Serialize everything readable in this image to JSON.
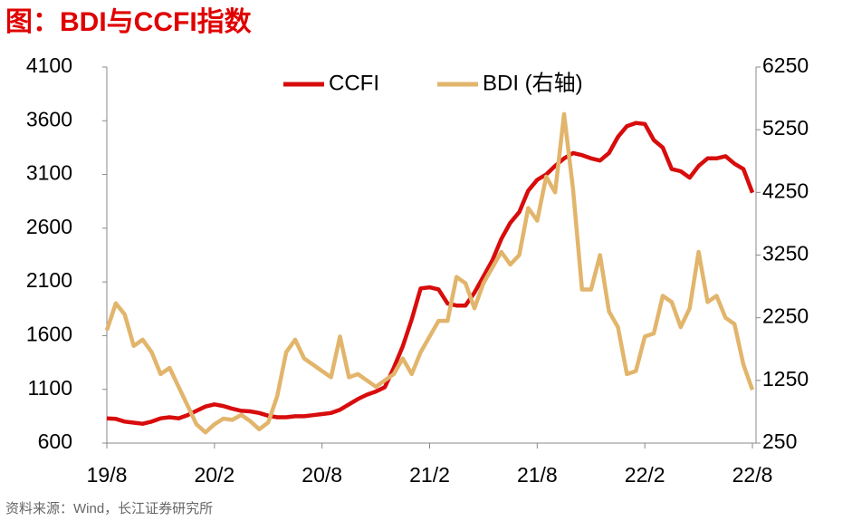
{
  "chart_data": {
    "type": "line",
    "title": "图：BDI与CCFI指数",
    "source": "资料来源：Wind，长江证券研究所",
    "categories": [
      "19/8",
      null,
      null,
      null,
      null,
      null,
      null,
      null,
      null,
      null,
      null,
      null,
      "20/2",
      null,
      null,
      null,
      null,
      null,
      null,
      null,
      null,
      null,
      null,
      null,
      "20/8",
      null,
      null,
      null,
      null,
      null,
      null,
      null,
      null,
      null,
      null,
      null,
      "21/2",
      null,
      null,
      null,
      null,
      null,
      null,
      null,
      null,
      null,
      null,
      null,
      "21/8",
      null,
      null,
      null,
      null,
      null,
      null,
      null,
      null,
      null,
      null,
      null,
      "22/2",
      null,
      null,
      null,
      null,
      null,
      null,
      null,
      null,
      null,
      null,
      null,
      "22/8"
    ],
    "series": [
      {
        "name": "CCFI",
        "color": "#d80c0c",
        "values": [
          830,
          825,
          800,
          790,
          780,
          800,
          830,
          840,
          830,
          860,
          900,
          940,
          960,
          945,
          920,
          900,
          895,
          880,
          855,
          840,
          840,
          850,
          850,
          860,
          870,
          880,
          910,
          960,
          1010,
          1050,
          1080,
          1120,
          1300,
          1500,
          1750,
          2040,
          2050,
          2030,
          1900,
          1880,
          1880,
          2000,
          2150,
          2300,
          2500,
          2650,
          2750,
          2950,
          3050,
          3100,
          3180,
          3250,
          3300,
          3280,
          3250,
          3230,
          3300,
          3450,
          3550,
          3580,
          3570,
          3420,
          3350,
          3150,
          3130,
          3070,
          3180,
          3250,
          3250,
          3270,
          3200,
          3150,
          2930
        ]
      },
      {
        "name": "BDI (右轴)",
        "color": "#e2b56c",
        "axis": "y2",
        "values": [
          2050,
          2480,
          2300,
          1800,
          1900,
          1700,
          1350,
          1450,
          1150,
          850,
          550,
          420,
          550,
          640,
          620,
          700,
          600,
          470,
          580,
          1000,
          1700,
          1900,
          1600,
          1500,
          1400,
          1300,
          1950,
          1300,
          1350,
          1250,
          1150,
          1250,
          1350,
          1600,
          1350,
          1700,
          1950,
          2200,
          2200,
          2900,
          2800,
          2400,
          2800,
          3050,
          3300,
          3100,
          3250,
          4000,
          3800,
          4500,
          4250,
          5500,
          4300,
          2700,
          2700,
          3250,
          2350,
          2100,
          1350,
          1400,
          1950,
          2000,
          2600,
          2500,
          2100,
          2400,
          3300,
          2500,
          2600,
          2250,
          2150,
          1500,
          1100
        ]
      }
    ],
    "ylim": [
      600,
      4100
    ],
    "yticks": [
      600,
      1100,
      1600,
      2100,
      2600,
      3100,
      3600,
      4100
    ],
    "y2lim": [
      250,
      6250
    ],
    "y2ticks": [
      250,
      1250,
      2250,
      3250,
      4250,
      5250,
      6250
    ],
    "grid": false
  }
}
